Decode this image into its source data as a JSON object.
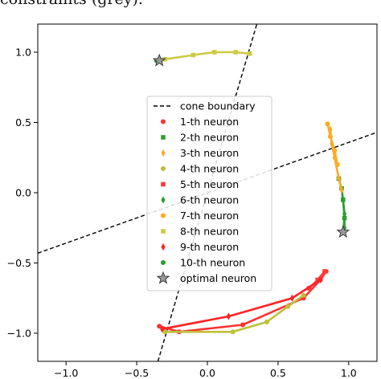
{
  "caption": "constraints (grey).",
  "chart_data": {
    "type": "scatter",
    "xlim": [
      -1.2,
      1.2
    ],
    "ylim": [
      -1.2,
      1.2
    ],
    "x_ticks": [
      -1.0,
      -0.5,
      0.0,
      0.5,
      1.0
    ],
    "x_tick_labels": [
      "−1.0",
      "−0.5",
      "0.0",
      "0.5",
      "1.0"
    ],
    "y_ticks": [
      1.0,
      0.5,
      0.0,
      -0.5,
      -1.0
    ],
    "y_tick_labels": [
      "1.0",
      "0.5",
      "0.0",
      "−0.5",
      "−1.0"
    ],
    "grid": false,
    "legend_position": "center",
    "boundary_lines": [
      {
        "name": "cone boundary",
        "color": "#000000",
        "dash": true,
        "points": [
          [
            -0.35,
            -1.2
          ],
          [
            0.35,
            1.2
          ]
        ]
      },
      {
        "name": "cone boundary",
        "color": "#000000",
        "dash": true,
        "points": [
          [
            -1.2,
            -0.43
          ],
          [
            1.2,
            0.43
          ]
        ]
      }
    ],
    "series": [
      {
        "name": "1-th neuron",
        "color": "#ff3333",
        "marker": "circle",
        "points": [
          [
            -0.34,
            -0.95
          ],
          [
            -0.2,
            -0.99
          ],
          [
            0.25,
            -0.94
          ],
          [
            0.68,
            -0.75
          ],
          [
            0.8,
            -0.62
          ],
          [
            0.84,
            -0.56
          ]
        ]
      },
      {
        "name": "2-th neuron",
        "color": "#2ca02c",
        "marker": "square",
        "points": [
          [
            0.96,
            -0.28
          ],
          [
            0.97,
            -0.18
          ],
          [
            0.96,
            -0.05
          ],
          [
            0.95,
            0.03
          ],
          [
            0.93,
            0.1
          ]
        ]
      },
      {
        "name": "3-th neuron",
        "color": "#ffaa22",
        "marker": "thin-diamond",
        "points": [
          [
            0.87,
            0.45
          ],
          [
            0.88,
            0.35
          ],
          [
            0.9,
            0.25
          ],
          [
            0.93,
            0.1
          ],
          [
            0.95,
            0.02
          ]
        ]
      },
      {
        "name": "4-th neuron",
        "color": "#bfbf3a",
        "marker": "circle",
        "points": [
          [
            -0.3,
            -0.99
          ],
          [
            0.18,
            -0.99
          ],
          [
            0.42,
            -0.92
          ],
          [
            0.57,
            -0.81
          ],
          [
            0.68,
            -0.73
          ]
        ]
      },
      {
        "name": "5-th neuron",
        "color": "#ff3b3b",
        "marker": "square",
        "points": [
          [
            0.72,
            -0.68
          ],
          [
            0.78,
            -0.62
          ],
          [
            0.83,
            -0.56
          ]
        ]
      },
      {
        "name": "6-th neuron",
        "color": "#2ca02c",
        "marker": "thin-diamond",
        "points": [
          [
            0.97,
            -0.25
          ],
          [
            0.97,
            -0.15
          ],
          [
            0.96,
            -0.05
          ]
        ]
      },
      {
        "name": "7-th neuron",
        "color": "#ffaa22",
        "marker": "circle",
        "points": [
          [
            0.85,
            0.49
          ],
          [
            0.87,
            0.4
          ],
          [
            0.9,
            0.3
          ],
          [
            0.92,
            0.2
          ]
        ]
      },
      {
        "name": "8-th neuron",
        "color": "#cccc44",
        "marker": "square",
        "points": [
          [
            -0.3,
            0.95
          ],
          [
            -0.1,
            0.98
          ],
          [
            0.05,
            1.0
          ],
          [
            0.2,
            1.0
          ],
          [
            0.3,
            0.99
          ]
        ]
      },
      {
        "name": "9-th neuron",
        "color": "#ff2222",
        "marker": "thin-diamond",
        "points": [
          [
            -0.32,
            -0.97
          ],
          [
            0.15,
            -0.88
          ],
          [
            0.6,
            -0.75
          ],
          [
            0.8,
            -0.62
          ]
        ]
      },
      {
        "name": "10-th neuron",
        "color": "#2ca02c",
        "marker": "circle",
        "points": [
          [
            -0.36,
            0.94
          ],
          [
            -0.34,
            0.95
          ]
        ]
      },
      {
        "name": "optimal neuron",
        "color": "#999999",
        "marker": "star",
        "points": [
          [
            -0.34,
            0.94
          ],
          [
            0.96,
            -0.28
          ]
        ]
      }
    ]
  }
}
